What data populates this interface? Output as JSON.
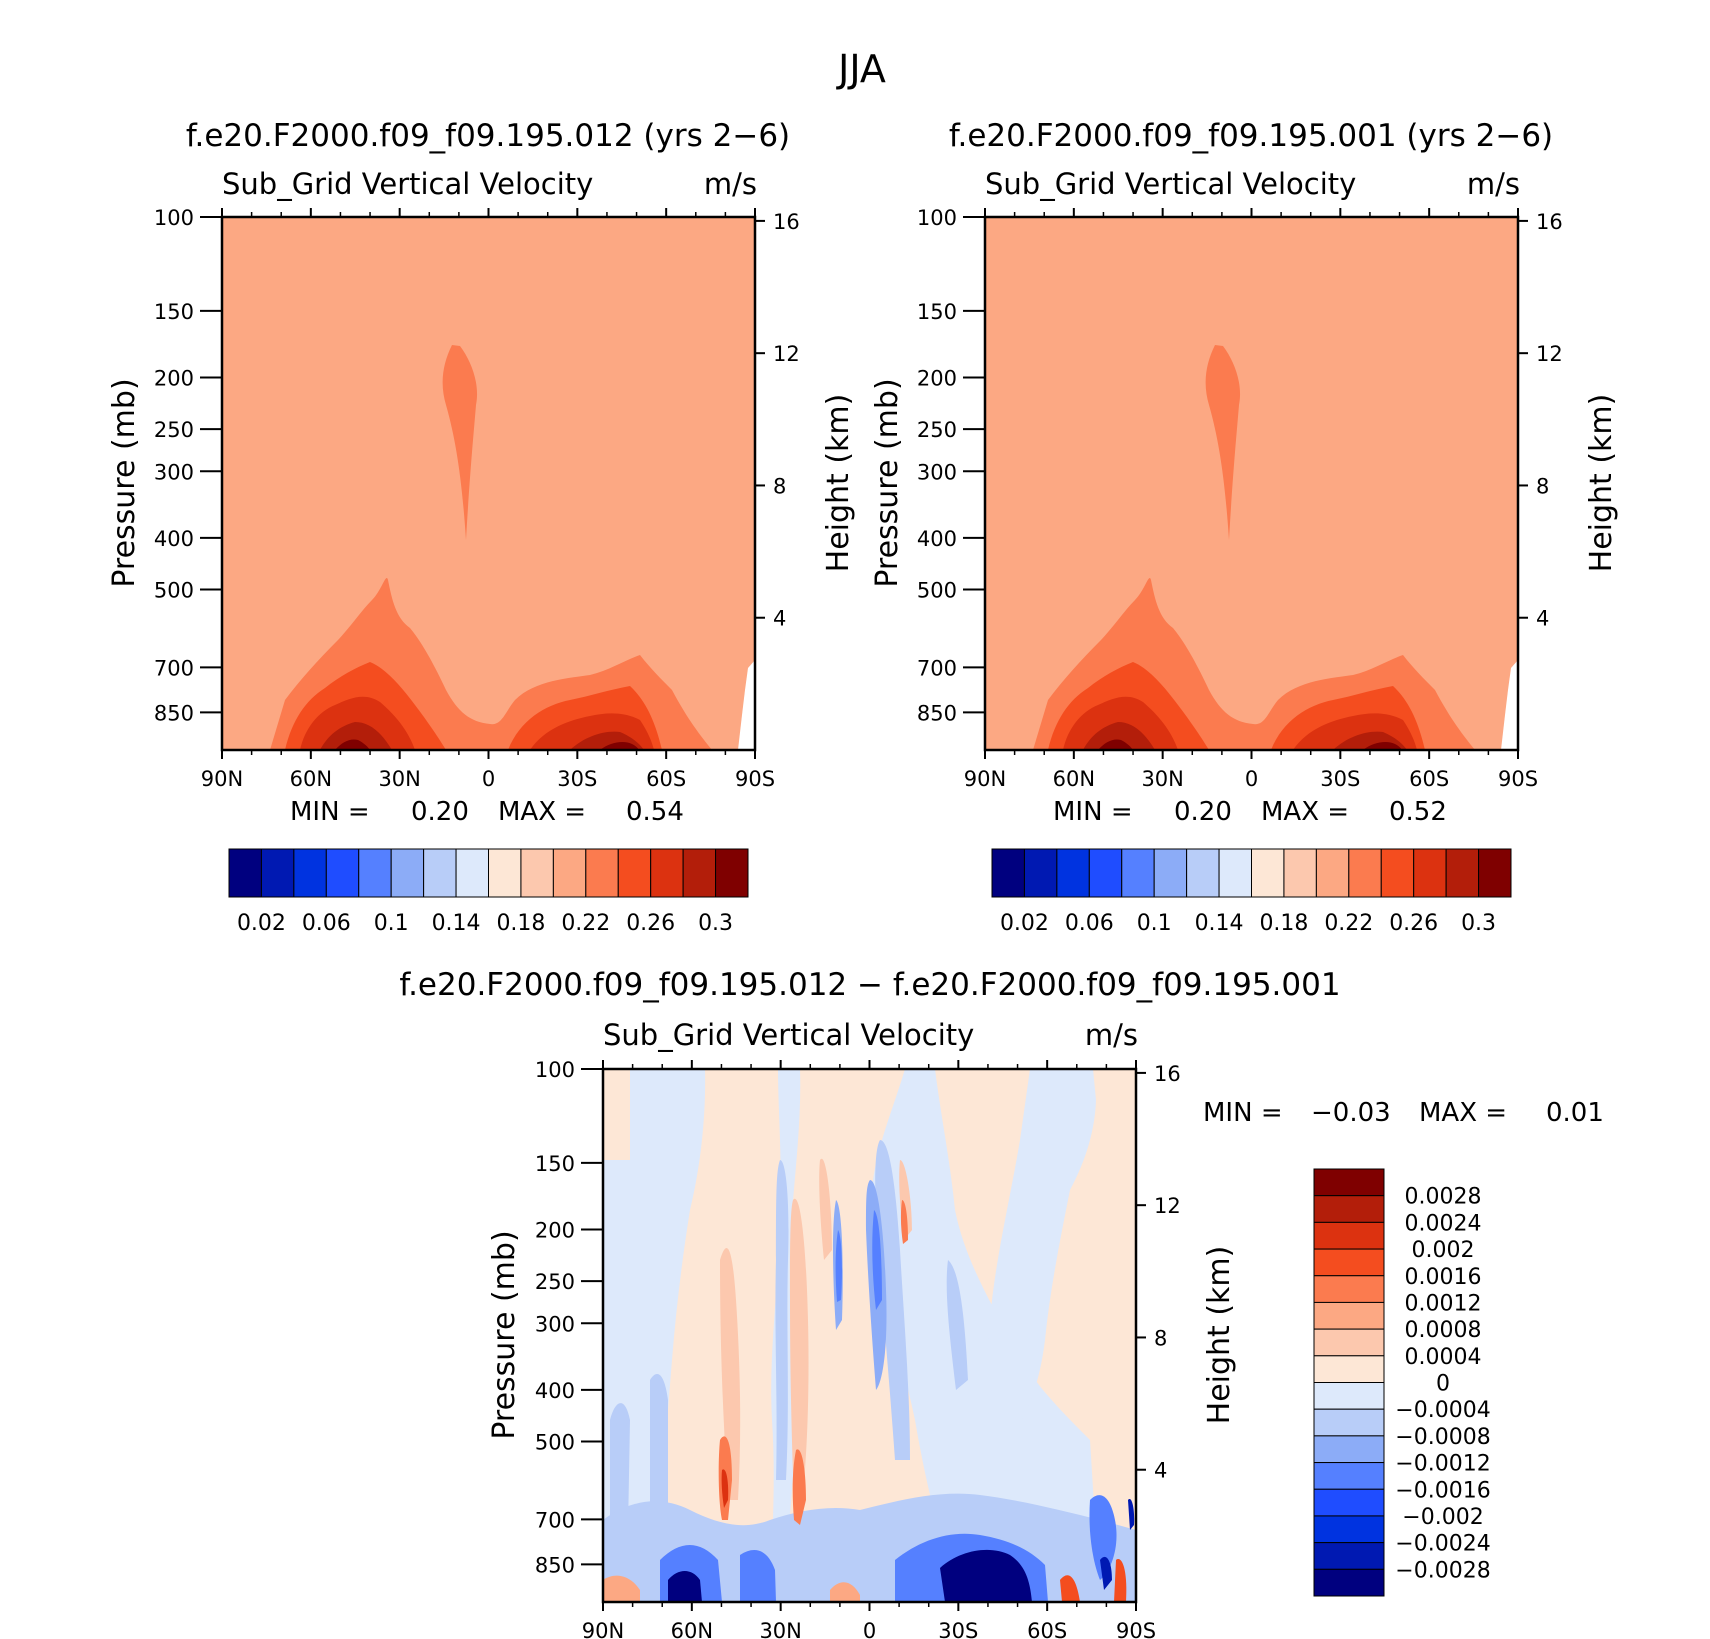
{
  "figure": {
    "title": "JJA"
  },
  "chart_data": [
    {
      "type": "heatmap",
      "panel": "case",
      "title": "f.e20.F2000.f09_f09.195.012 (yrs 2−6)",
      "variable": "Sub_Grid Vertical Velocity",
      "units": "m/s",
      "ylabel": "Pressure (mb)",
      "y2label": "Height (km)",
      "x_ticks": [
        "90N",
        "60N",
        "30N",
        "0",
        "30S",
        "60S",
        "90S"
      ],
      "x_values": [
        90,
        60,
        30,
        0,
        -30,
        -60,
        -90
      ],
      "y_ticks": [
        "100",
        "150",
        "200",
        "250",
        "300",
        "400",
        "500",
        "700",
        "850"
      ],
      "y_values": [
        100,
        150,
        200,
        250,
        300,
        400,
        500,
        700,
        850
      ],
      "y_range": [
        100,
        1000
      ],
      "y2_ticks": [
        "16",
        "12",
        "8",
        "4"
      ],
      "y2_values": [
        16,
        12,
        8,
        4
      ],
      "min_label": "MIN =",
      "min_value": "0.20",
      "max_label": "MAX =",
      "max_value": "0.54",
      "colorbar": {
        "labels": [
          "0.02",
          "0.06",
          "0.1",
          "0.14",
          "0.18",
          "0.22",
          "0.26",
          "0.3"
        ],
        "colors": [
          "#00007f",
          "#0019b2",
          "#0033e0",
          "#1f4dff",
          "#5580ff",
          "#8cacf7",
          "#b8cdf8",
          "#dde9fb",
          "#fde7d6",
          "#fcc8ae",
          "#fca883",
          "#fb7b4f",
          "#f44d1f",
          "#dc3210",
          "#b31e0a",
          "#7f0000"
        ]
      }
    },
    {
      "type": "heatmap",
      "panel": "control",
      "title": "f.e20.F2000.f09_f09.195.001 (yrs 2−6)",
      "variable": "Sub_Grid Vertical Velocity",
      "units": "m/s",
      "ylabel": "Pressure (mb)",
      "y2label": "Height (km)",
      "x_ticks": [
        "90N",
        "60N",
        "30N",
        "0",
        "30S",
        "60S",
        "90S"
      ],
      "x_values": [
        90,
        60,
        30,
        0,
        -30,
        -60,
        -90
      ],
      "y_ticks": [
        "100",
        "150",
        "200",
        "250",
        "300",
        "400",
        "500",
        "700",
        "850"
      ],
      "y_values": [
        100,
        150,
        200,
        250,
        300,
        400,
        500,
        700,
        850
      ],
      "y_range": [
        100,
        1000
      ],
      "y2_ticks": [
        "16",
        "12",
        "8",
        "4"
      ],
      "y2_values": [
        16,
        12,
        8,
        4
      ],
      "min_label": "MIN =",
      "min_value": "0.20",
      "max_label": "MAX =",
      "max_value": "0.52",
      "colorbar": {
        "labels": [
          "0.02",
          "0.06",
          "0.1",
          "0.14",
          "0.18",
          "0.22",
          "0.26",
          "0.3"
        ],
        "colors": [
          "#00007f",
          "#0019b2",
          "#0033e0",
          "#1f4dff",
          "#5580ff",
          "#8cacf7",
          "#b8cdf8",
          "#dde9fb",
          "#fde7d6",
          "#fcc8ae",
          "#fca883",
          "#fb7b4f",
          "#f44d1f",
          "#dc3210",
          "#b31e0a",
          "#7f0000"
        ]
      }
    },
    {
      "type": "heatmap",
      "panel": "difference",
      "title": "f.e20.F2000.f09_f09.195.012 − f.e20.F2000.f09_f09.195.001",
      "variable": "Sub_Grid Vertical Velocity",
      "units": "m/s",
      "ylabel": "Pressure (mb)",
      "y2label": "Height (km)",
      "x_ticks": [
        "90N",
        "60N",
        "30N",
        "0",
        "30S",
        "60S",
        "90S"
      ],
      "x_values": [
        90,
        60,
        30,
        0,
        -30,
        -60,
        -90
      ],
      "y_ticks": [
        "100",
        "150",
        "200",
        "250",
        "300",
        "400",
        "500",
        "700",
        "850"
      ],
      "y_values": [
        100,
        150,
        200,
        250,
        300,
        400,
        500,
        700,
        850
      ],
      "y_range": [
        100,
        1000
      ],
      "y2_ticks": [
        "16",
        "12",
        "8",
        "4"
      ],
      "y2_values": [
        16,
        12,
        8,
        4
      ],
      "min_label": "MIN =",
      "min_value": "−0.03",
      "max_label": "MAX =",
      "max_value": "0.01",
      "colorbar": {
        "labels": [
          "0.0028",
          "0.0024",
          "0.002",
          "0.0016",
          "0.0012",
          "0.0008",
          "0.0004",
          "0",
          "−0.0004",
          "−0.0008",
          "−0.0012",
          "−0.0016",
          "−0.002",
          "−0.0024",
          "−0.0028"
        ],
        "colors": [
          "#7f0000",
          "#b31e0a",
          "#dc3210",
          "#f44d1f",
          "#fb7b4f",
          "#fca883",
          "#fcc8ae",
          "#fde7d6",
          "#dde9fb",
          "#b8cdf8",
          "#8cacf7",
          "#5580ff",
          "#1f4dff",
          "#0033e0",
          "#0019b2",
          "#00007f"
        ]
      }
    }
  ]
}
